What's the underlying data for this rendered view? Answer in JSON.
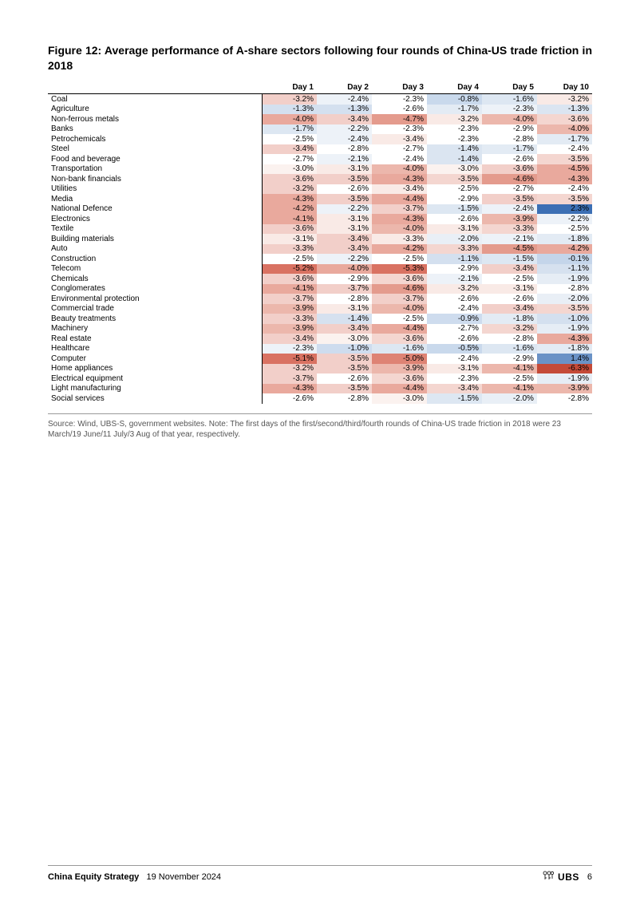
{
  "figure": {
    "title": "Figure 12: Average performance of A-share sectors following four rounds of China-US trade friction in 2018",
    "columns": [
      "Day 1",
      "Day 2",
      "Day 3",
      "Day 4",
      "Day 5",
      "Day 10"
    ],
    "rows": [
      {
        "sector": "Coal",
        "cells": [
          {
            "v": "-3.2%",
            "c": "#f2cfc9"
          },
          {
            "v": "-2.4%",
            "c": "#edf2f8"
          },
          {
            "v": "-2.3%",
            "c": "#ffffff"
          },
          {
            "v": "-0.8%",
            "c": "#c9d9ec"
          },
          {
            "v": "-1.6%",
            "c": "#dde7f2"
          },
          {
            "v": "-3.2%",
            "c": "#f9eae6"
          }
        ]
      },
      {
        "sector": "Agriculture",
        "cells": [
          {
            "v": "-1.3%",
            "c": "#d4e0ef"
          },
          {
            "v": "-1.3%",
            "c": "#d4e0ef"
          },
          {
            "v": "-2.6%",
            "c": "#ffffff"
          },
          {
            "v": "-1.7%",
            "c": "#e3ebf4"
          },
          {
            "v": "-2.3%",
            "c": "#edf2f8"
          },
          {
            "v": "-1.3%",
            "c": "#dbe5f1"
          }
        ]
      },
      {
        "sector": "Non-ferrous metals",
        "cells": [
          {
            "v": "-4.0%",
            "c": "#e9a99d"
          },
          {
            "v": "-3.4%",
            "c": "#f2cfc9"
          },
          {
            "v": "-4.7%",
            "c": "#e49b8d"
          },
          {
            "v": "-3.2%",
            "c": "#f9eae6"
          },
          {
            "v": "-4.0%",
            "c": "#ecb7ac"
          },
          {
            "v": "-3.6%",
            "c": "#f4d6d0"
          }
        ]
      },
      {
        "sector": "Banks",
        "cells": [
          {
            "v": "-1.7%",
            "c": "#dde7f2"
          },
          {
            "v": "-2.2%",
            "c": "#edf2f8"
          },
          {
            "v": "-2.3%",
            "c": "#ffffff"
          },
          {
            "v": "-2.3%",
            "c": "#ffffff"
          },
          {
            "v": "-2.9%",
            "c": "#ffffff"
          },
          {
            "v": "-4.0%",
            "c": "#ecb7ac"
          }
        ]
      },
      {
        "sector": "Petrochemicals",
        "cells": [
          {
            "v": "-2.5%",
            "c": "#ffffff"
          },
          {
            "v": "-2.4%",
            "c": "#edf2f8"
          },
          {
            "v": "-3.4%",
            "c": "#f9eae6"
          },
          {
            "v": "-2.3%",
            "c": "#ffffff"
          },
          {
            "v": "-2.8%",
            "c": "#ffffff"
          },
          {
            "v": "-1.7%",
            "c": "#e3ebf4"
          }
        ]
      },
      {
        "sector": "Steel",
        "cells": [
          {
            "v": "-3.4%",
            "c": "#f2cfc9"
          },
          {
            "v": "-2.8%",
            "c": "#ffffff"
          },
          {
            "v": "-2.7%",
            "c": "#ffffff"
          },
          {
            "v": "-1.4%",
            "c": "#dbe5f1"
          },
          {
            "v": "-1.7%",
            "c": "#e3ebf4"
          },
          {
            "v": "-2.4%",
            "c": "#ffffff"
          }
        ]
      },
      {
        "sector": "Food and beverage",
        "cells": [
          {
            "v": "-2.7%",
            "c": "#ffffff"
          },
          {
            "v": "-2.1%",
            "c": "#edf2f8"
          },
          {
            "v": "-2.4%",
            "c": "#ffffff"
          },
          {
            "v": "-1.4%",
            "c": "#dbe5f1"
          },
          {
            "v": "-2.6%",
            "c": "#ffffff"
          },
          {
            "v": "-3.5%",
            "c": "#f4d6d0"
          }
        ]
      },
      {
        "sector": "Transportation",
        "cells": [
          {
            "v": "-3.0%",
            "c": "#fbf2ef"
          },
          {
            "v": "-3.1%",
            "c": "#f9eae6"
          },
          {
            "v": "-4.0%",
            "c": "#ecb7ac"
          },
          {
            "v": "-3.0%",
            "c": "#fbf2ef"
          },
          {
            "v": "-3.6%",
            "c": "#f2cfc9"
          },
          {
            "v": "-4.5%",
            "c": "#e9a99d"
          }
        ]
      },
      {
        "sector": "Non-bank financials",
        "cells": [
          {
            "v": "-3.6%",
            "c": "#f2cfc9"
          },
          {
            "v": "-3.5%",
            "c": "#f2cfc9"
          },
          {
            "v": "-4.3%",
            "c": "#e9a99d"
          },
          {
            "v": "-3.5%",
            "c": "#f4d6d0"
          },
          {
            "v": "-4.6%",
            "c": "#e49b8d"
          },
          {
            "v": "-4.3%",
            "c": "#e9a99d"
          }
        ]
      },
      {
        "sector": "Utilities",
        "cells": [
          {
            "v": "-3.2%",
            "c": "#f2cfc9"
          },
          {
            "v": "-2.6%",
            "c": "#ffffff"
          },
          {
            "v": "-3.4%",
            "c": "#f9eae6"
          },
          {
            "v": "-2.5%",
            "c": "#ffffff"
          },
          {
            "v": "-2.7%",
            "c": "#ffffff"
          },
          {
            "v": "-2.4%",
            "c": "#ffffff"
          }
        ]
      },
      {
        "sector": "Media",
        "cells": [
          {
            "v": "-4.3%",
            "c": "#e9a99d"
          },
          {
            "v": "-3.5%",
            "c": "#f2cfc9"
          },
          {
            "v": "-4.4%",
            "c": "#e9a99d"
          },
          {
            "v": "-2.9%",
            "c": "#ffffff"
          },
          {
            "v": "-3.5%",
            "c": "#f2cfc9"
          },
          {
            "v": "-3.5%",
            "c": "#f4d6d0"
          }
        ]
      },
      {
        "sector": "National Defence",
        "cells": [
          {
            "v": "-4.2%",
            "c": "#e9a99d"
          },
          {
            "v": "-2.2%",
            "c": "#edf2f8"
          },
          {
            "v": "-3.7%",
            "c": "#f2cfc9"
          },
          {
            "v": "-1.5%",
            "c": "#dde7f2"
          },
          {
            "v": "-2.4%",
            "c": "#edf2f8"
          },
          {
            "v": "2.3%",
            "c": "#3c6fb4"
          }
        ]
      },
      {
        "sector": "Electronics",
        "cells": [
          {
            "v": "-4.1%",
            "c": "#e9a99d"
          },
          {
            "v": "-3.1%",
            "c": "#f9eae6"
          },
          {
            "v": "-4.3%",
            "c": "#e9a99d"
          },
          {
            "v": "-2.6%",
            "c": "#ffffff"
          },
          {
            "v": "-3.9%",
            "c": "#ecb7ac"
          },
          {
            "v": "-2.2%",
            "c": "#edf2f8"
          }
        ]
      },
      {
        "sector": "Textile",
        "cells": [
          {
            "v": "-3.6%",
            "c": "#f2cfc9"
          },
          {
            "v": "-3.1%",
            "c": "#f9eae6"
          },
          {
            "v": "-4.0%",
            "c": "#ecb7ac"
          },
          {
            "v": "-3.1%",
            "c": "#f9eae6"
          },
          {
            "v": "-3.3%",
            "c": "#f4d6d0"
          },
          {
            "v": "-2.5%",
            "c": "#ffffff"
          }
        ]
      },
      {
        "sector": "Building materials",
        "cells": [
          {
            "v": "-3.1%",
            "c": "#f9eae6"
          },
          {
            "v": "-3.4%",
            "c": "#f2cfc9"
          },
          {
            "v": "-3.3%",
            "c": "#f9eae6"
          },
          {
            "v": "-2.0%",
            "c": "#e9eff6"
          },
          {
            "v": "-2.1%",
            "c": "#edf2f8"
          },
          {
            "v": "-1.8%",
            "c": "#e3ebf4"
          }
        ]
      },
      {
        "sector": "Auto",
        "cells": [
          {
            "v": "-3.3%",
            "c": "#f2cfc9"
          },
          {
            "v": "-3.4%",
            "c": "#f2cfc9"
          },
          {
            "v": "-4.2%",
            "c": "#e9a99d"
          },
          {
            "v": "-3.3%",
            "c": "#f4d6d0"
          },
          {
            "v": "-4.5%",
            "c": "#e49b8d"
          },
          {
            "v": "-4.2%",
            "c": "#e9a99d"
          }
        ]
      },
      {
        "sector": "Construction",
        "cells": [
          {
            "v": "-2.5%",
            "c": "#ffffff"
          },
          {
            "v": "-2.2%",
            "c": "#edf2f8"
          },
          {
            "v": "-2.5%",
            "c": "#ffffff"
          },
          {
            "v": "-1.1%",
            "c": "#d4e0ef"
          },
          {
            "v": "-1.5%",
            "c": "#dde7f2"
          },
          {
            "v": "-0.1%",
            "c": "#c4d5ea"
          }
        ]
      },
      {
        "sector": "Telecom",
        "cells": [
          {
            "v": "-5.2%",
            "c": "#d97262"
          },
          {
            "v": "-4.0%",
            "c": "#e9a99d"
          },
          {
            "v": "-5.3%",
            "c": "#d97262"
          },
          {
            "v": "-2.9%",
            "c": "#ffffff"
          },
          {
            "v": "-3.4%",
            "c": "#f2cfc9"
          },
          {
            "v": "-1.1%",
            "c": "#d6e1ef"
          }
        ]
      },
      {
        "sector": "Chemicals",
        "cells": [
          {
            "v": "-3.6%",
            "c": "#f2cfc9"
          },
          {
            "v": "-2.9%",
            "c": "#ffffff"
          },
          {
            "v": "-3.6%",
            "c": "#f4d6d0"
          },
          {
            "v": "-2.1%",
            "c": "#edf2f8"
          },
          {
            "v": "-2.5%",
            "c": "#ffffff"
          },
          {
            "v": "-1.9%",
            "c": "#e6edf5"
          }
        ]
      },
      {
        "sector": "Conglomerates",
        "cells": [
          {
            "v": "-4.1%",
            "c": "#e9a99d"
          },
          {
            "v": "-3.7%",
            "c": "#f2cfc9"
          },
          {
            "v": "-4.6%",
            "c": "#e49b8d"
          },
          {
            "v": "-3.2%",
            "c": "#f9eae6"
          },
          {
            "v": "-3.1%",
            "c": "#f9eae6"
          },
          {
            "v": "-2.8%",
            "c": "#ffffff"
          }
        ]
      },
      {
        "sector": "Environmental protection",
        "cells": [
          {
            "v": "-3.7%",
            "c": "#f2cfc9"
          },
          {
            "v": "-2.8%",
            "c": "#ffffff"
          },
          {
            "v": "-3.7%",
            "c": "#f2cfc9"
          },
          {
            "v": "-2.6%",
            "c": "#ffffff"
          },
          {
            "v": "-2.6%",
            "c": "#ffffff"
          },
          {
            "v": "-2.0%",
            "c": "#e9eff6"
          }
        ]
      },
      {
        "sector": "Commercial trade",
        "cells": [
          {
            "v": "-3.9%",
            "c": "#ecb7ac"
          },
          {
            "v": "-3.1%",
            "c": "#f9eae6"
          },
          {
            "v": "-4.0%",
            "c": "#ecb7ac"
          },
          {
            "v": "-2.4%",
            "c": "#ffffff"
          },
          {
            "v": "-3.4%",
            "c": "#f2cfc9"
          },
          {
            "v": "-3.5%",
            "c": "#f4d6d0"
          }
        ]
      },
      {
        "sector": "Beauty treatments",
        "cells": [
          {
            "v": "-3.3%",
            "c": "#f2cfc9"
          },
          {
            "v": "-1.4%",
            "c": "#d6e1ef"
          },
          {
            "v": "-2.5%",
            "c": "#ffffff"
          },
          {
            "v": "-0.9%",
            "c": "#cedcee"
          },
          {
            "v": "-1.8%",
            "c": "#e3ebf4"
          },
          {
            "v": "-1.0%",
            "c": "#d4e0ef"
          }
        ]
      },
      {
        "sector": "Machinery",
        "cells": [
          {
            "v": "-3.9%",
            "c": "#ecb7ac"
          },
          {
            "v": "-3.4%",
            "c": "#f2cfc9"
          },
          {
            "v": "-4.4%",
            "c": "#e9a99d"
          },
          {
            "v": "-2.7%",
            "c": "#ffffff"
          },
          {
            "v": "-3.2%",
            "c": "#f4d6d0"
          },
          {
            "v": "-1.9%",
            "c": "#e6edf5"
          }
        ]
      },
      {
        "sector": "Real estate",
        "cells": [
          {
            "v": "-3.4%",
            "c": "#f2cfc9"
          },
          {
            "v": "-3.0%",
            "c": "#fbf2ef"
          },
          {
            "v": "-3.6%",
            "c": "#f4d6d0"
          },
          {
            "v": "-2.6%",
            "c": "#ffffff"
          },
          {
            "v": "-2.8%",
            "c": "#ffffff"
          },
          {
            "v": "-4.3%",
            "c": "#e9a99d"
          }
        ]
      },
      {
        "sector": "Healthcare",
        "cells": [
          {
            "v": "-2.3%",
            "c": "#edf2f8"
          },
          {
            "v": "-1.0%",
            "c": "#cedcee"
          },
          {
            "v": "-1.6%",
            "c": "#dde7f2"
          },
          {
            "v": "-0.5%",
            "c": "#c9d9ec"
          },
          {
            "v": "-1.6%",
            "c": "#dde7f2"
          },
          {
            "v": "-1.8%",
            "c": "#e3ebf4"
          }
        ]
      },
      {
        "sector": "Computer",
        "cells": [
          {
            "v": "-5.1%",
            "c": "#d97262"
          },
          {
            "v": "-3.5%",
            "c": "#f2cfc9"
          },
          {
            "v": "-5.0%",
            "c": "#de8374"
          },
          {
            "v": "-2.4%",
            "c": "#ffffff"
          },
          {
            "v": "-2.9%",
            "c": "#ffffff"
          },
          {
            "v": "1.4%",
            "c": "#6a92c6"
          }
        ]
      },
      {
        "sector": "Home appliances",
        "cells": [
          {
            "v": "-3.2%",
            "c": "#f2cfc9"
          },
          {
            "v": "-3.5%",
            "c": "#f2cfc9"
          },
          {
            "v": "-3.9%",
            "c": "#ecb7ac"
          },
          {
            "v": "-3.1%",
            "c": "#f9eae6"
          },
          {
            "v": "-4.1%",
            "c": "#ecb7ac"
          },
          {
            "v": "-6.3%",
            "c": "#c44a38"
          }
        ]
      },
      {
        "sector": "Electrical equipment",
        "cells": [
          {
            "v": "-3.7%",
            "c": "#f2cfc9"
          },
          {
            "v": "-2.6%",
            "c": "#ffffff"
          },
          {
            "v": "-3.6%",
            "c": "#f4d6d0"
          },
          {
            "v": "-2.3%",
            "c": "#ffffff"
          },
          {
            "v": "-2.5%",
            "c": "#ffffff"
          },
          {
            "v": "-1.9%",
            "c": "#e6edf5"
          }
        ]
      },
      {
        "sector": "Light manufacturing",
        "cells": [
          {
            "v": "-4.3%",
            "c": "#e9a99d"
          },
          {
            "v": "-3.5%",
            "c": "#f2cfc9"
          },
          {
            "v": "-4.4%",
            "c": "#e9a99d"
          },
          {
            "v": "-3.4%",
            "c": "#f4d6d0"
          },
          {
            "v": "-4.1%",
            "c": "#ecb7ac"
          },
          {
            "v": "-3.9%",
            "c": "#ecb7ac"
          }
        ]
      },
      {
        "sector": "Social services",
        "cells": [
          {
            "v": "-2.6%",
            "c": "#ffffff"
          },
          {
            "v": "-2.8%",
            "c": "#ffffff"
          },
          {
            "v": "-3.0%",
            "c": "#fbf2ef"
          },
          {
            "v": "-1.5%",
            "c": "#dde7f2"
          },
          {
            "v": "-2.0%",
            "c": "#e9eff6"
          },
          {
            "v": "-2.8%",
            "c": "#ffffff"
          }
        ]
      }
    ],
    "source": "Source: Wind, UBS-S, government websites. Note: The first days of the first/second/third/fourth rounds of China-US trade friction in 2018 were 23 March/19 June/11 July/3 Aug of that year, respectively."
  },
  "footer": {
    "title": "China Equity Strategy",
    "date": "19 November 2024",
    "brand": "UBS",
    "page": "6"
  }
}
